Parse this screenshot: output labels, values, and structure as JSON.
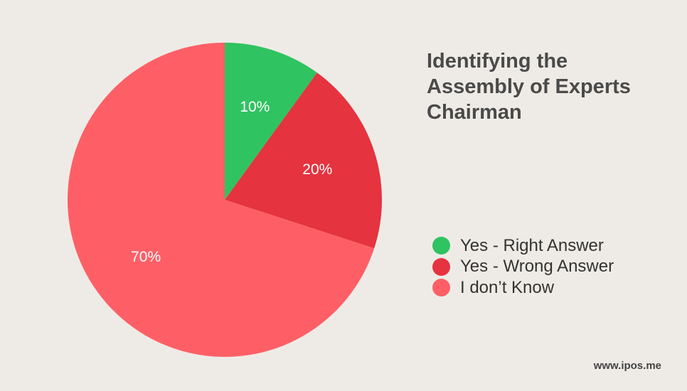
{
  "title_lines": [
    "Identifying the",
    "Assembly of Experts",
    "Chairman"
  ],
  "source": "www.ipos.me",
  "chart_data": {
    "type": "pie",
    "title": "Identifying the Assembly of Experts Chairman",
    "slices": [
      {
        "label": "Yes - Right Answer",
        "value": 10,
        "display": "10%",
        "color": "#30c361"
      },
      {
        "label": "Yes - Wrong Answer",
        "value": 20,
        "display": "20%",
        "color": "#e5333f"
      },
      {
        "label": "I don’t Know",
        "value": 70,
        "display": "70%",
        "color": "#fe5f66"
      }
    ],
    "start_angle": "12 o'clock",
    "direction": "clockwise",
    "legend_position": "right"
  }
}
